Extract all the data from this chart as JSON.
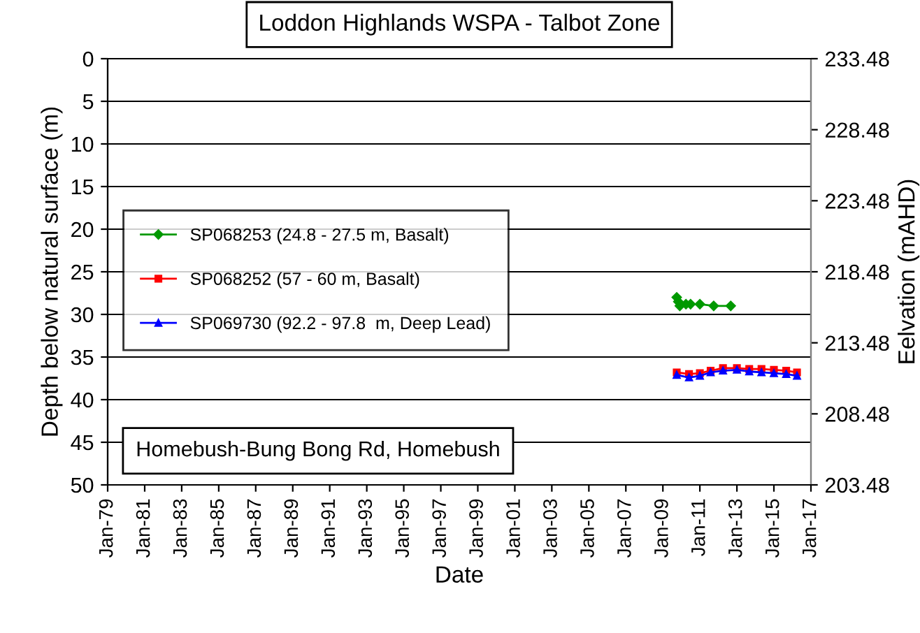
{
  "chart_data": {
    "type": "line",
    "title": "Loddon Highlands WSPA - Talbot Zone",
    "xlabel": "Date",
    "ylabel": "Depth below natural surface (m)",
    "y2label": "Eelvation (mAHD)",
    "annotations": [
      "Homebush-Bung Bong Rd, Homebush"
    ],
    "xlim": [
      "1979-01-01",
      "2017-01-01"
    ],
    "xticks": [
      {
        "value": "1979-01-01",
        "label": "Jan-79"
      },
      {
        "value": "1981-01-01",
        "label": "Jan-81"
      },
      {
        "value": "1983-01-01",
        "label": "Jan-83"
      },
      {
        "value": "1985-01-01",
        "label": "Jan-85"
      },
      {
        "value": "1987-01-01",
        "label": "Jan-87"
      },
      {
        "value": "1989-01-01",
        "label": "Jan-89"
      },
      {
        "value": "1991-01-01",
        "label": "Jan-91"
      },
      {
        "value": "1993-01-01",
        "label": "Jan-93"
      },
      {
        "value": "1995-01-01",
        "label": "Jan-95"
      },
      {
        "value": "1997-01-01",
        "label": "Jan-97"
      },
      {
        "value": "1999-01-01",
        "label": "Jan-99"
      },
      {
        "value": "2001-01-01",
        "label": "Jan-01"
      },
      {
        "value": "2003-01-01",
        "label": "Jan-03"
      },
      {
        "value": "2005-01-01",
        "label": "Jan-05"
      },
      {
        "value": "2007-01-01",
        "label": "Jan-07"
      },
      {
        "value": "2009-01-01",
        "label": "Jan-09"
      },
      {
        "value": "2011-01-01",
        "label": "Jan-11"
      },
      {
        "value": "2013-01-01",
        "label": "Jan-13"
      },
      {
        "value": "2015-01-01",
        "label": "Jan-15"
      },
      {
        "value": "2017-01-01",
        "label": "Jan-17"
      }
    ],
    "ylim": [
      50,
      0
    ],
    "yticks": [
      0,
      5,
      10,
      15,
      20,
      25,
      30,
      35,
      40,
      45,
      50
    ],
    "y2lim": [
      203.48,
      233.48
    ],
    "y2ticks": [
      203.48,
      208.48,
      213.48,
      218.48,
      223.48,
      228.48,
      233.48
    ],
    "grid": "y",
    "legend": "left",
    "line_style": "solid",
    "series": [
      {
        "name": "SP068253 (24.8 - 27.5 m, Basalt)",
        "color": "#009900",
        "marker": "diamond",
        "x": [
          "2009-10",
          "2009-11",
          "2009-12",
          "2010-04",
          "2010-07",
          "2011-01",
          "2011-10",
          "2012-09"
        ],
        "values": [
          28.0,
          28.5,
          29.0,
          28.8,
          28.8,
          28.8,
          29.0,
          29.0
        ]
      },
      {
        "name": "SP068252 (57 - 60 m, Basalt)",
        "color": "#ff0000",
        "marker": "square",
        "x": [
          "2009-10",
          "2010-06",
          "2011-01",
          "2011-08",
          "2012-04",
          "2013-01",
          "2013-09",
          "2014-05",
          "2015-01",
          "2015-09",
          "2016-04"
        ],
        "values": [
          36.8,
          37.0,
          36.9,
          36.6,
          36.3,
          36.3,
          36.4,
          36.4,
          36.5,
          36.6,
          36.8
        ]
      },
      {
        "name": "SP069730 (92.2 - 97.8  m, Deep Lead)",
        "color": "#0000ff",
        "marker": "triangle",
        "x": [
          "2009-10",
          "2010-06",
          "2011-01",
          "2011-08",
          "2012-04",
          "2013-01",
          "2013-09",
          "2014-05",
          "2015-01",
          "2015-09",
          "2016-04"
        ],
        "values": [
          37.1,
          37.4,
          37.2,
          36.8,
          36.6,
          36.5,
          36.7,
          36.8,
          36.9,
          37.0,
          37.2
        ]
      }
    ]
  }
}
